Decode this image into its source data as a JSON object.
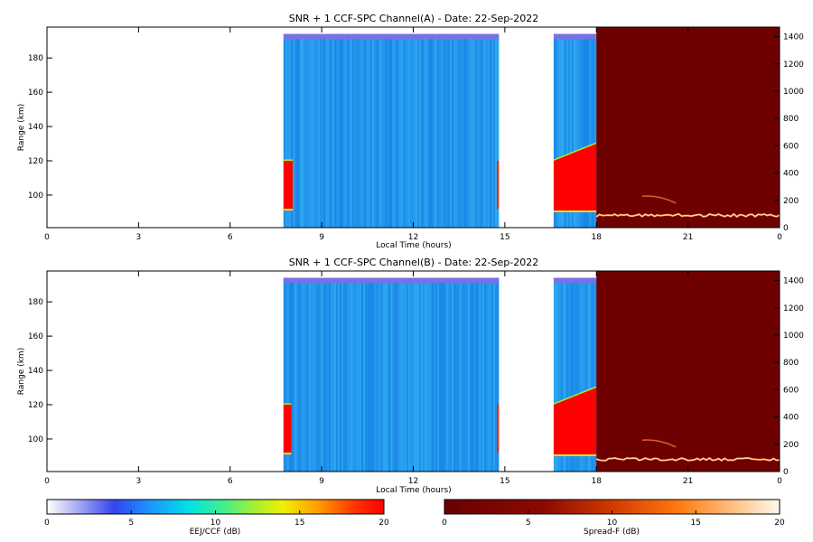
{
  "chart_data": [
    {
      "type": "heatmap",
      "title": "SNR + 1 CCF-SPC Channel(A) - Date: 22-Sep-2022",
      "xlabel": "Local Time (hours)",
      "ylabel": "Range (km)",
      "x_ticks": [
        "0",
        "3",
        "6",
        "9",
        "12",
        "15",
        "18",
        "21",
        "0"
      ],
      "y_ticks": [
        "100",
        "120",
        "140",
        "160",
        "180"
      ],
      "y2_ticks": [
        "0",
        "200",
        "400",
        "600",
        "800",
        "1000",
        "1200",
        "1400"
      ],
      "xlim": [
        0,
        24
      ],
      "ylim": [
        81,
        198
      ],
      "y2lim": [
        0,
        1470
      ],
      "eej_blocks": [
        {
          "t0": 7.75,
          "t1": 14.8,
          "red_top": [
            120,
            120
          ],
          "red_t1": 8.05
        },
        {
          "t0": 16.6,
          "t1": 18.0,
          "red_top": [
            120,
            130
          ],
          "red_t1": 18.0
        }
      ],
      "spread_f": {
        "t0": 18.0,
        "t1": 24.0,
        "trace_range": 90,
        "arc": [
          [
            19.5,
            230
          ],
          [
            20.6,
            180
          ]
        ]
      },
      "seed": 7
    },
    {
      "type": "heatmap",
      "title": "SNR + 1 CCF-SPC Channel(B) - Date: 22-Sep-2022",
      "xlabel": "Local Time (hours)",
      "ylabel": "Range (km)",
      "x_ticks": [
        "0",
        "3",
        "6",
        "9",
        "12",
        "15",
        "18",
        "21",
        "0"
      ],
      "y_ticks": [
        "100",
        "120",
        "140",
        "160",
        "180"
      ],
      "y2_ticks": [
        "0",
        "200",
        "400",
        "600",
        "800",
        "1000",
        "1200",
        "1400"
      ],
      "xlim": [
        0,
        24
      ],
      "ylim": [
        81,
        198
      ],
      "y2lim": [
        0,
        1470
      ],
      "eej_blocks": [
        {
          "t0": 7.75,
          "t1": 14.8,
          "red_top": [
            120,
            120
          ],
          "red_t1": 8.0
        },
        {
          "t0": 16.6,
          "t1": 18.0,
          "red_top": [
            120,
            130
          ],
          "red_t1": 18.0
        }
      ],
      "spread_f": {
        "t0": 18.0,
        "t1": 24.0,
        "trace_range": 90,
        "arc": [
          [
            19.5,
            230
          ],
          [
            20.6,
            180
          ]
        ]
      },
      "seed": 13
    }
  ],
  "colorbars": [
    {
      "label": "EEJ/CCF (dB)",
      "ticks": [
        "0",
        "5",
        "10",
        "15",
        "20"
      ],
      "colormap": "eej"
    },
    {
      "label": "Spread-F (dB)",
      "ticks": [
        "0",
        "5",
        "10",
        "15",
        "20"
      ],
      "colormap": "sf"
    }
  ]
}
